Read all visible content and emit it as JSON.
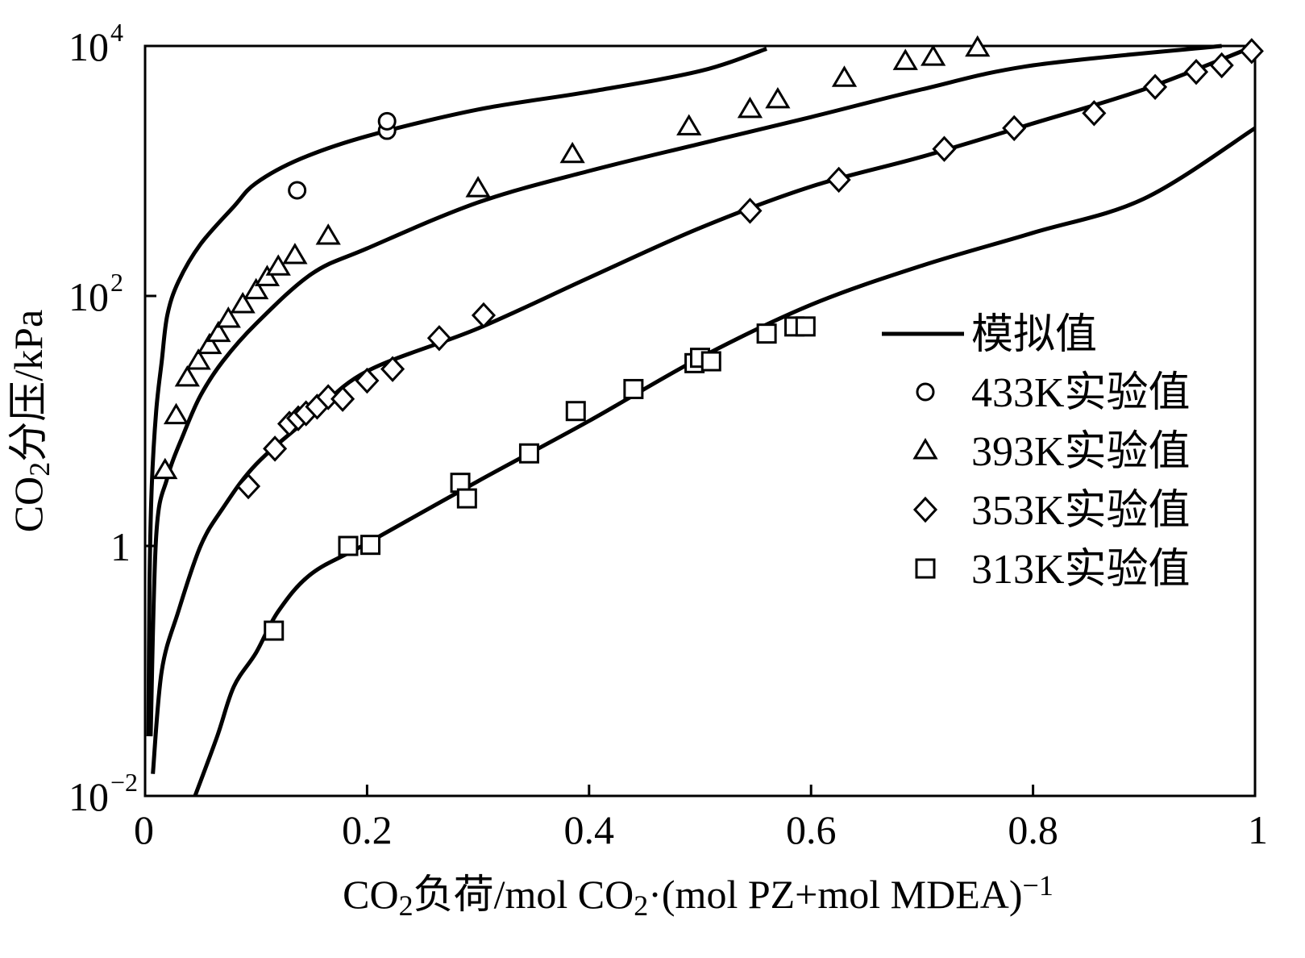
{
  "chart_data": {
    "type": "scatter",
    "xlabel": "CO₂负荷/mol CO₂·(mol PZ+mol MDEA)⁻¹",
    "ylabel": "CO₂分压/kPa",
    "xlim": [
      0,
      1
    ],
    "ylim": [
      0.01,
      10000
    ],
    "yscale": "log",
    "grid": false,
    "legend_position": "right",
    "x_ticks": [
      {
        "value": 0,
        "label": "0"
      },
      {
        "value": 0.2,
        "label": "0.2"
      },
      {
        "value": 0.4,
        "label": "0.4"
      },
      {
        "value": 0.6,
        "label": "0.6"
      },
      {
        "value": 0.8,
        "label": "0.8"
      },
      {
        "value": 1,
        "label": "1"
      }
    ],
    "y_ticks": [
      {
        "value": 0.01,
        "base": "10",
        "exp": "−2"
      },
      {
        "value": 1,
        "base": "1",
        "exp": ""
      },
      {
        "value": 100,
        "base": "10",
        "exp": "2"
      },
      {
        "value": 10000,
        "base": "10",
        "exp": "4"
      }
    ],
    "series": [
      {
        "name": "模拟值",
        "kind": "line",
        "color": "#000000",
        "points": [
          [
            0.003,
            0.03
          ],
          [
            0.004,
            0.5
          ],
          [
            0.006,
            3
          ],
          [
            0.01,
            12
          ],
          [
            0.015,
            30
          ],
          [
            0.02,
            70
          ],
          [
            0.03,
            130
          ],
          [
            0.05,
            260
          ],
          [
            0.08,
            520
          ],
          [
            0.1,
            800
          ],
          [
            0.14,
            1250
          ],
          [
            0.2,
            1900
          ],
          [
            0.3,
            3100
          ],
          [
            0.4,
            4300
          ],
          [
            0.5,
            6300
          ],
          [
            0.56,
            9500
          ]
        ]
      },
      {
        "name": "模拟值",
        "kind": "line",
        "color": "#000000",
        "points": [
          [
            0.005,
            0.03
          ],
          [
            0.01,
            1.2
          ],
          [
            0.02,
            3.5
          ],
          [
            0.035,
            8
          ],
          [
            0.05,
            16
          ],
          [
            0.07,
            30
          ],
          [
            0.1,
            60
          ],
          [
            0.15,
            150
          ],
          [
            0.2,
            240
          ],
          [
            0.3,
            560
          ],
          [
            0.4,
            1000
          ],
          [
            0.5,
            1650
          ],
          [
            0.6,
            2700
          ],
          [
            0.7,
            4500
          ],
          [
            0.8,
            7000
          ],
          [
            0.97,
            10000
          ]
        ]
      },
      {
        "name": "模拟值",
        "kind": "line",
        "color": "#000000",
        "points": [
          [
            0.007,
            0.015
          ],
          [
            0.015,
            0.1
          ],
          [
            0.03,
            0.3
          ],
          [
            0.05,
            1.0
          ],
          [
            0.07,
            2.0
          ],
          [
            0.1,
            4.5
          ],
          [
            0.15,
            11
          ],
          [
            0.2,
            25
          ],
          [
            0.3,
            55
          ],
          [
            0.4,
            140
          ],
          [
            0.5,
            350
          ],
          [
            0.6,
            750
          ],
          [
            0.7,
            1300
          ],
          [
            0.8,
            2400
          ],
          [
            0.9,
            4500
          ],
          [
            1.0,
            10000
          ]
        ]
      },
      {
        "name": "模拟值",
        "kind": "line",
        "color": "#000000",
        "points": [
          [
            0.045,
            0.01
          ],
          [
            0.065,
            0.03
          ],
          [
            0.08,
            0.075
          ],
          [
            0.1,
            0.14
          ],
          [
            0.12,
            0.3
          ],
          [
            0.15,
            0.6
          ],
          [
            0.2,
            1.05
          ],
          [
            0.3,
            3.3
          ],
          [
            0.4,
            10
          ],
          [
            0.5,
            32
          ],
          [
            0.6,
            85
          ],
          [
            0.7,
            175
          ],
          [
            0.8,
            320
          ],
          [
            0.9,
            600
          ],
          [
            1.0,
            2200
          ]
        ]
      },
      {
        "name": "433K实验值",
        "kind": "marker",
        "marker": "circle",
        "points": [
          [
            0.137,
            700
          ],
          [
            0.218,
            2100
          ],
          [
            0.218,
            2500
          ]
        ]
      },
      {
        "name": "393K实验值",
        "kind": "marker",
        "marker": "triangle",
        "points": [
          [
            0.018,
            4
          ],
          [
            0.028,
            11
          ],
          [
            0.038,
            22
          ],
          [
            0.048,
            30
          ],
          [
            0.058,
            40
          ],
          [
            0.066,
            50
          ],
          [
            0.075,
            65
          ],
          [
            0.088,
            85
          ],
          [
            0.1,
            110
          ],
          [
            0.11,
            140
          ],
          [
            0.12,
            170
          ],
          [
            0.135,
            210
          ],
          [
            0.165,
            300
          ],
          [
            0.3,
            720
          ],
          [
            0.385,
            1350
          ],
          [
            0.49,
            2250
          ],
          [
            0.545,
            3100
          ],
          [
            0.57,
            3700
          ],
          [
            0.63,
            5500
          ],
          [
            0.685,
            7500
          ],
          [
            0.71,
            8100
          ],
          [
            0.75,
            9600
          ]
        ]
      },
      {
        "name": "353K实验值",
        "kind": "marker",
        "marker": "diamond",
        "points": [
          [
            0.093,
            3.0
          ],
          [
            0.117,
            6.0
          ],
          [
            0.13,
            9.5
          ],
          [
            0.138,
            10.5
          ],
          [
            0.145,
            11.5
          ],
          [
            0.155,
            13.0
          ],
          [
            0.165,
            15.5
          ],
          [
            0.178,
            15.0
          ],
          [
            0.2,
            21.0
          ],
          [
            0.223,
            26.0
          ],
          [
            0.265,
            46.0
          ],
          [
            0.305,
            70.0
          ],
          [
            0.545,
            480.0
          ],
          [
            0.625,
            850.0
          ],
          [
            0.72,
            1500.0
          ],
          [
            0.783,
            2200.0
          ],
          [
            0.855,
            2900.0
          ],
          [
            0.91,
            4700.0
          ],
          [
            0.947,
            6200.0
          ],
          [
            0.97,
            7000.0
          ],
          [
            0.997,
            9100.0
          ]
        ]
      },
      {
        "name": "313K实验值",
        "kind": "marker",
        "marker": "square",
        "points": [
          [
            0.116,
            0.21
          ],
          [
            0.183,
            1.0
          ],
          [
            0.203,
            1.02
          ],
          [
            0.284,
            3.2
          ],
          [
            0.29,
            2.4
          ],
          [
            0.346,
            5.5
          ],
          [
            0.388,
            12.0
          ],
          [
            0.44,
            18.0
          ],
          [
            0.495,
            29.0
          ],
          [
            0.5,
            32.0
          ],
          [
            0.51,
            30.0
          ],
          [
            0.56,
            50.0
          ],
          [
            0.585,
            57.0
          ],
          [
            0.595,
            57.0
          ]
        ]
      }
    ],
    "legend": [
      {
        "label": "模拟值",
        "marker": "line"
      },
      {
        "label": "433K实验值",
        "marker": "circle"
      },
      {
        "label": "393K实验值",
        "marker": "triangle"
      },
      {
        "label": "353K实验值",
        "marker": "diamond"
      },
      {
        "label": "313K实验值",
        "marker": "square"
      }
    ]
  }
}
